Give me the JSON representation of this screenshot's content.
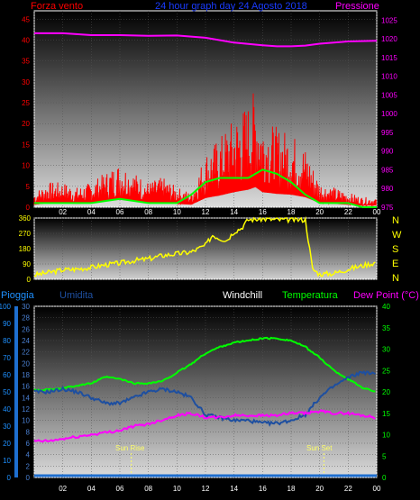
{
  "chart_data": [
    {
      "type": "line",
      "title": "24 hour graph day 24 Agosto 2018",
      "left_label": "Forza vento",
      "right_label": "Pressione",
      "x_ticks": [
        "02",
        "04",
        "06",
        "08",
        "10",
        "12",
        "14",
        "16",
        "18",
        "20",
        "22",
        "00"
      ],
      "y_left_ticks": [
        "0",
        "5",
        "10",
        "15",
        "20",
        "25",
        "30",
        "35",
        "40",
        "45"
      ],
      "ylim_left": [
        0,
        47
      ],
      "y_right_ticks": [
        "975",
        "980",
        "985",
        "990",
        "995",
        "1000",
        "1005",
        "1010",
        "1015",
        "1020",
        "1025"
      ],
      "ylim_right": [
        975,
        1027.5
      ],
      "series": [
        {
          "name": "Pressione",
          "color": "#ff00ff",
          "axis": "right",
          "x": [
            0,
            2,
            4,
            6,
            8,
            10,
            12,
            14,
            16,
            17,
            18,
            19,
            20,
            22,
            24
          ],
          "values": [
            1021.5,
            1021.5,
            1021.0,
            1021.0,
            1020.8,
            1020.9,
            1020.3,
            1019.0,
            1018.3,
            1018.0,
            1018.0,
            1018.2,
            1018.7,
            1019.3,
            1019.5
          ]
        },
        {
          "name": "wind gust",
          "color": "#ff0000",
          "axis": "left",
          "x": [
            0,
            1,
            2,
            3,
            4,
            5,
            6,
            7,
            8,
            9,
            10,
            11,
            12,
            13,
            14,
            15,
            15.5,
            16,
            17,
            18,
            19,
            20,
            21,
            22,
            23,
            24
          ],
          "values": [
            3,
            5,
            5,
            4,
            5,
            7,
            9,
            7,
            5,
            6,
            4,
            3,
            11,
            14,
            18,
            21,
            24,
            18,
            16,
            15,
            12,
            5,
            4,
            3,
            2,
            2
          ]
        },
        {
          "name": "wind average",
          "color": "#00ff00",
          "axis": "left",
          "x": [
            0,
            2,
            4,
            6,
            8,
            10,
            11,
            12,
            13,
            14,
            15,
            16,
            17,
            18,
            19,
            20,
            21,
            22,
            23,
            24
          ],
          "values": [
            1,
            1,
            1,
            2,
            1,
            1,
            3,
            6,
            7,
            7,
            7,
            9,
            8,
            6,
            3,
            1,
            1,
            1,
            0,
            0
          ]
        }
      ]
    },
    {
      "type": "line",
      "right_labels": [
        "N",
        "W",
        "S",
        "E",
        "N"
      ],
      "y_left_ticks": [
        "0",
        "90",
        "180",
        "270",
        "360"
      ],
      "ylim": [
        0,
        360
      ],
      "series": [
        {
          "name": "direction",
          "color": "#ffff00",
          "x": [
            0,
            1,
            2,
            3,
            4,
            5,
            6,
            7,
            8,
            9,
            10,
            11,
            12,
            12.5,
            13,
            13.5,
            14,
            14.5,
            15,
            16,
            17,
            18,
            19,
            19.5,
            20,
            21,
            22,
            23,
            24
          ],
          "values": [
            25,
            40,
            55,
            60,
            70,
            85,
            95,
            110,
            120,
            140,
            150,
            160,
            200,
            260,
            240,
            230,
            280,
            300,
            350,
            355,
            350,
            350,
            350,
            60,
            30,
            35,
            60,
            80,
            100
          ]
        }
      ]
    },
    {
      "type": "line",
      "labels": [
        "Pioggia",
        "Umidita",
        "Windchill",
        "Temperatura",
        "Dew Point (°C)"
      ],
      "x_ticks": [
        "02",
        "04",
        "06",
        "08",
        "10",
        "12",
        "14",
        "16",
        "18",
        "20",
        "22",
        "00"
      ],
      "y_rain_ticks": [
        "0",
        "10",
        "20",
        "30",
        "40",
        "50",
        "60",
        "70",
        "80",
        "90",
        "100"
      ],
      "y_hum_ticks": [
        "0",
        "2",
        "4",
        "6",
        "8",
        "10",
        "12",
        "14",
        "16",
        "18",
        "20",
        "22",
        "24",
        "26",
        "28",
        "30"
      ],
      "y_temp_ticks": [
        "0",
        "5",
        "10",
        "15",
        "20",
        "25",
        "30",
        "35",
        "40"
      ],
      "annotations": [
        "Sun Rise",
        "Sun Set"
      ],
      "series": [
        {
          "name": "Temperatura",
          "color": "#00ff00",
          "x": [
            0,
            1,
            2,
            3,
            4,
            5,
            6,
            7,
            8,
            9,
            10,
            11,
            12,
            13,
            14,
            15,
            16,
            17,
            18,
            19,
            20,
            21,
            22,
            23,
            24
          ],
          "values": [
            20.5,
            20.5,
            20.8,
            21.5,
            22.0,
            23.5,
            23.0,
            22.0,
            22.0,
            22.5,
            24.5,
            26.5,
            29.0,
            30.5,
            31.5,
            32.0,
            32.5,
            32.5,
            32.0,
            30.5,
            28.0,
            25.0,
            23.0,
            21.0,
            20.0
          ]
        },
        {
          "name": "Umidita",
          "color": "#1e4fa0",
          "x": [
            0,
            1,
            2,
            3,
            4,
            5,
            6,
            7,
            8,
            9,
            10,
            11,
            12,
            13,
            14,
            15,
            16,
            17,
            18,
            19,
            20,
            21,
            22,
            23,
            24
          ],
          "values": [
            15.0,
            15.0,
            15.5,
            15.0,
            14.0,
            13.0,
            13.0,
            14.0,
            15.0,
            15.5,
            15.0,
            14.0,
            11.0,
            10.5,
            10.0,
            10.0,
            9.5,
            9.5,
            10.0,
            11.0,
            14.0,
            16.0,
            17.5,
            18.5,
            18.0
          ]
        },
        {
          "name": "Dew Point",
          "color": "#ff00ff",
          "x": [
            0,
            1,
            2,
            3,
            4,
            5,
            6,
            7,
            8,
            9,
            10,
            11,
            12,
            13,
            14,
            15,
            16,
            17,
            18,
            19,
            20,
            21,
            22,
            23,
            24
          ],
          "values": [
            8.5,
            8.5,
            9.0,
            9.5,
            10.0,
            10.5,
            11.0,
            12.0,
            12.5,
            13.5,
            14.5,
            15.0,
            14.0,
            14.0,
            14.5,
            14.5,
            14.5,
            14.5,
            15.0,
            15.0,
            15.5,
            15.0,
            15.0,
            14.5,
            14.0
          ]
        },
        {
          "name": "Pioggia",
          "color": "#1e6fd0",
          "x": [
            0,
            24
          ],
          "values": [
            0,
            0
          ]
        }
      ],
      "sunrise_x": 6.8,
      "sunset_x": 20.3
    }
  ]
}
